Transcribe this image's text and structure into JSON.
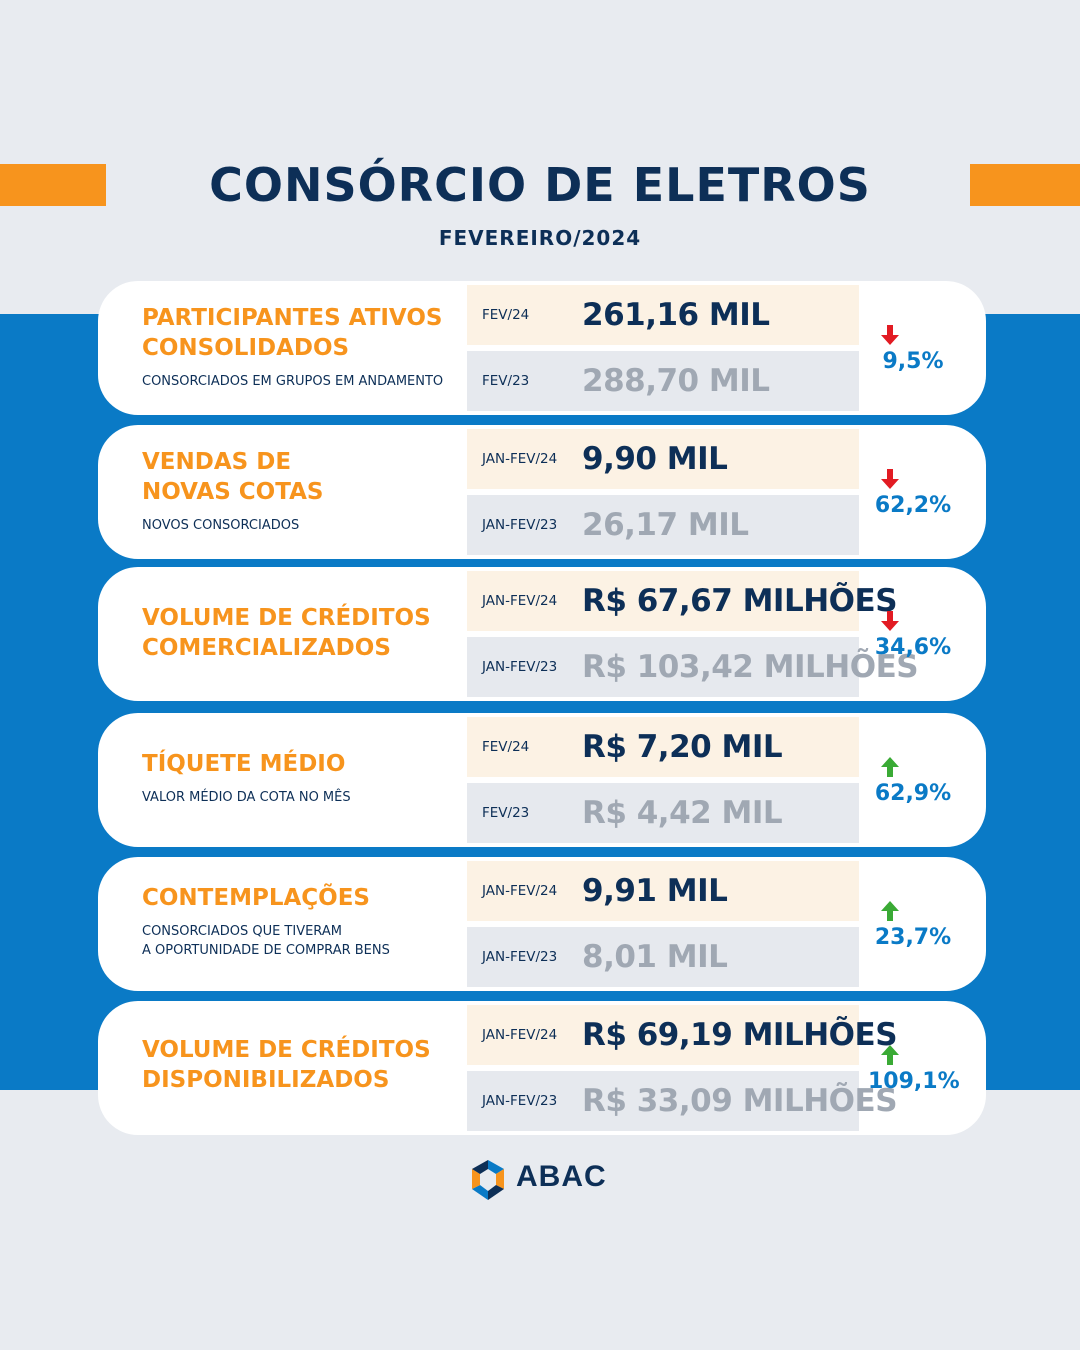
{
  "header": {
    "title": "CONSÓRCIO DE ELETROS",
    "subtitle": "FEVEREIRO/2024"
  },
  "colors": {
    "accent_orange": "#f7941d",
    "navy": "#0d2f57",
    "blue": "#0a7ac6",
    "down_red": "#e21b23",
    "up_green": "#3aaa35"
  },
  "cards": [
    {
      "title": "PARTICIPANTES ATIVOS\nCONSOLIDADOS",
      "description": "CONSORCIADOS EM GRUPOS EM ANDAMENTO",
      "current_period": "FEV/24",
      "current_value": "261,16 MIL",
      "previous_period": "FEV/23",
      "previous_value": "288,70 MIL",
      "direction": "down",
      "change": "9,5%"
    },
    {
      "title": "VENDAS DE\nNOVAS COTAS",
      "description": "NOVOS CONSORCIADOS",
      "current_period": "JAN-FEV/24",
      "current_value": "9,90 MIL",
      "previous_period": "JAN-FEV/23",
      "previous_value": "26,17 MIL",
      "direction": "down",
      "change": "62,2%"
    },
    {
      "title": "VOLUME DE CRÉDITOS\nCOMERCIALIZADOS",
      "description": "",
      "current_period": "JAN-FEV/24",
      "current_value": "R$ 67,67 MILHÕES",
      "previous_period": "JAN-FEV/23",
      "previous_value": "R$ 103,42 MILHÕES",
      "direction": "down",
      "change": "34,6%"
    },
    {
      "title": "TÍQUETE MÉDIO",
      "description": "VALOR MÉDIO DA COTA NO MÊS",
      "current_period": "FEV/24",
      "current_value": "R$ 7,20 MIL",
      "previous_period": "FEV/23",
      "previous_value": "R$ 4,42 MIL",
      "direction": "up",
      "change": "62,9%"
    },
    {
      "title": "CONTEMPLAÇÕES",
      "description": "CONSORCIADOS QUE TIVERAM\nA OPORTUNIDADE DE COMPRAR BENS",
      "current_period": "JAN-FEV/24",
      "current_value": "9,91 MIL",
      "previous_period": "JAN-FEV/23",
      "previous_value": "8,01 MIL",
      "direction": "up",
      "change": "23,7%"
    },
    {
      "title": "VOLUME DE CRÉDITOS\nDISPONIBILIZADOS",
      "description": "",
      "current_period": "JAN-FEV/24",
      "current_value": "R$ 69,19 MILHÕES",
      "previous_period": "JAN-FEV/23",
      "previous_value": "R$ 33,09 MILHÕES",
      "direction": "up",
      "change": "109,1%"
    }
  ],
  "footer": {
    "logo_text": "ABAC",
    "logo_icon": "abac-logo-icon"
  }
}
